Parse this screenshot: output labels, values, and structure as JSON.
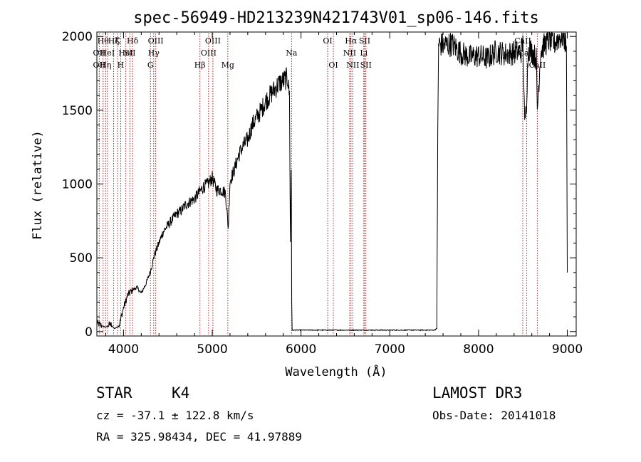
{
  "chart_data": {
    "type": "line",
    "title": "spec-56949-HD213239N421743V01_sp06-146.fits",
    "xlabel": "Wavelength (Å)",
    "ylabel": "Flux (relative)",
    "xlim": [
      3700,
      9100
    ],
    "ylim": [
      -30,
      2030
    ],
    "xticks": [
      4000,
      5000,
      6000,
      7000,
      8000,
      9000
    ],
    "yticks": [
      0,
      500,
      1000,
      1500,
      2000
    ],
    "x_tick_labels": [
      "4000",
      "5000",
      "6000",
      "7000",
      "8000",
      "9000"
    ],
    "y_tick_labels": [
      "0",
      "500",
      "1000",
      "1500",
      "2000"
    ],
    "series": [
      {
        "name": "flux",
        "x": [
          3700,
          3750,
          3800,
          3850,
          3900,
          3950,
          4000,
          4050,
          4100,
          4150,
          4200,
          4250,
          4300,
          4350,
          4400,
          4450,
          4500,
          4550,
          4600,
          4650,
          4700,
          4750,
          4800,
          4850,
          4900,
          4950,
          5000,
          5050,
          5100,
          5150,
          5180,
          5200,
          5250,
          5300,
          5350,
          5400,
          5450,
          5500,
          5550,
          5600,
          5650,
          5700,
          5750,
          5800,
          5850,
          5870,
          5880,
          5890,
          5895,
          5900,
          6000,
          6500,
          7000,
          7400,
          7500,
          7530,
          7540,
          7550,
          7600,
          7700,
          7800,
          7900,
          8000,
          8100,
          8200,
          8300,
          8400,
          8480,
          8500,
          8520,
          8540,
          8560,
          8600,
          8650,
          8662,
          8700,
          8750,
          8800,
          8850,
          8900,
          8950,
          8990,
          9000
        ],
        "y": [
          60,
          40,
          30,
          50,
          20,
          40,
          160,
          250,
          280,
          300,
          260,
          320,
          400,
          520,
          600,
          680,
          720,
          760,
          800,
          820,
          860,
          880,
          900,
          940,
          980,
          1000,
          1040,
          960,
          960,
          940,
          700,
          1020,
          1100,
          1200,
          1260,
          1300,
          1400,
          1450,
          1500,
          1560,
          1600,
          1640,
          1680,
          1700,
          1720,
          1600,
          600,
          1100,
          200,
          10,
          10,
          10,
          10,
          10,
          10,
          20,
          1300,
          1950,
          1940,
          1950,
          1890,
          1860,
          1870,
          1850,
          1900,
          1880,
          1890,
          1900,
          1950,
          1400,
          1550,
          1920,
          1900,
          1850,
          1500,
          1900,
          1950,
          1980,
          1950,
          1990,
          2000,
          1950,
          400
        ]
      }
    ],
    "line_labels": [
      {
        "wl": 3727,
        "label": "OII",
        "row": 2
      },
      {
        "wl": 3727,
        "label": "OII",
        "row": 3
      },
      {
        "wl": 3770,
        "label": "Hθ",
        "row": 1
      },
      {
        "wl": 3798,
        "label": "Hη",
        "row": 3
      },
      {
        "wl": 3820,
        "label": "HeI",
        "row": 2
      },
      {
        "wl": 3889,
        "label": "Hζ",
        "row": 1
      },
      {
        "wl": 3934,
        "label": "K",
        "row": 1
      },
      {
        "wl": 3968,
        "label": "H",
        "row": 3
      },
      {
        "wl": 4026,
        "label": "HeI",
        "row": 2
      },
      {
        "wl": 4072,
        "label": "SII",
        "row": 2
      },
      {
        "wl": 4102,
        "label": "Hδ",
        "row": 1
      },
      {
        "wl": 4304,
        "label": "G",
        "row": 3
      },
      {
        "wl": 4340,
        "label": "Hγ",
        "row": 2
      },
      {
        "wl": 4363,
        "label": "OIII",
        "row": 1
      },
      {
        "wl": 4861,
        "label": "Hβ",
        "row": 3
      },
      {
        "wl": 4959,
        "label": "OIII",
        "row": 2
      },
      {
        "wl": 5007,
        "label": "OIII",
        "row": 1
      },
      {
        "wl": 5175,
        "label": "Mg",
        "row": 3
      },
      {
        "wl": 5893,
        "label": "Na",
        "row": 2
      },
      {
        "wl": 6300,
        "label": "OI",
        "row": 1
      },
      {
        "wl": 6364,
        "label": "OI",
        "row": 3
      },
      {
        "wl": 6548,
        "label": "NII",
        "row": 2
      },
      {
        "wl": 6563,
        "label": "Hα",
        "row": 1
      },
      {
        "wl": 6584,
        "label": "NII",
        "row": 3
      },
      {
        "wl": 6707,
        "label": "Li",
        "row": 2
      },
      {
        "wl": 6717,
        "label": "SII",
        "row": 1
      },
      {
        "wl": 6731,
        "label": "SII",
        "row": 3
      },
      {
        "wl": 8498,
        "label": "CaII",
        "row": 1
      },
      {
        "wl": 8542,
        "label": "CaII",
        "row": 2
      },
      {
        "wl": 8662,
        "label": "CaII",
        "row": 3
      }
    ]
  },
  "info": {
    "object_class": "STAR",
    "subclass": "K4",
    "survey": "LAMOST DR3",
    "redshift": "cz = -37.1 ± 122.8 km/s",
    "obs_date": "Obs-Date: 20141018",
    "coords": "RA = 325.98434, DEC =  41.97889"
  },
  "colors": {
    "line": "#000000",
    "marker": "#b22222",
    "axis": "#000000",
    "background": "#ffffff"
  }
}
